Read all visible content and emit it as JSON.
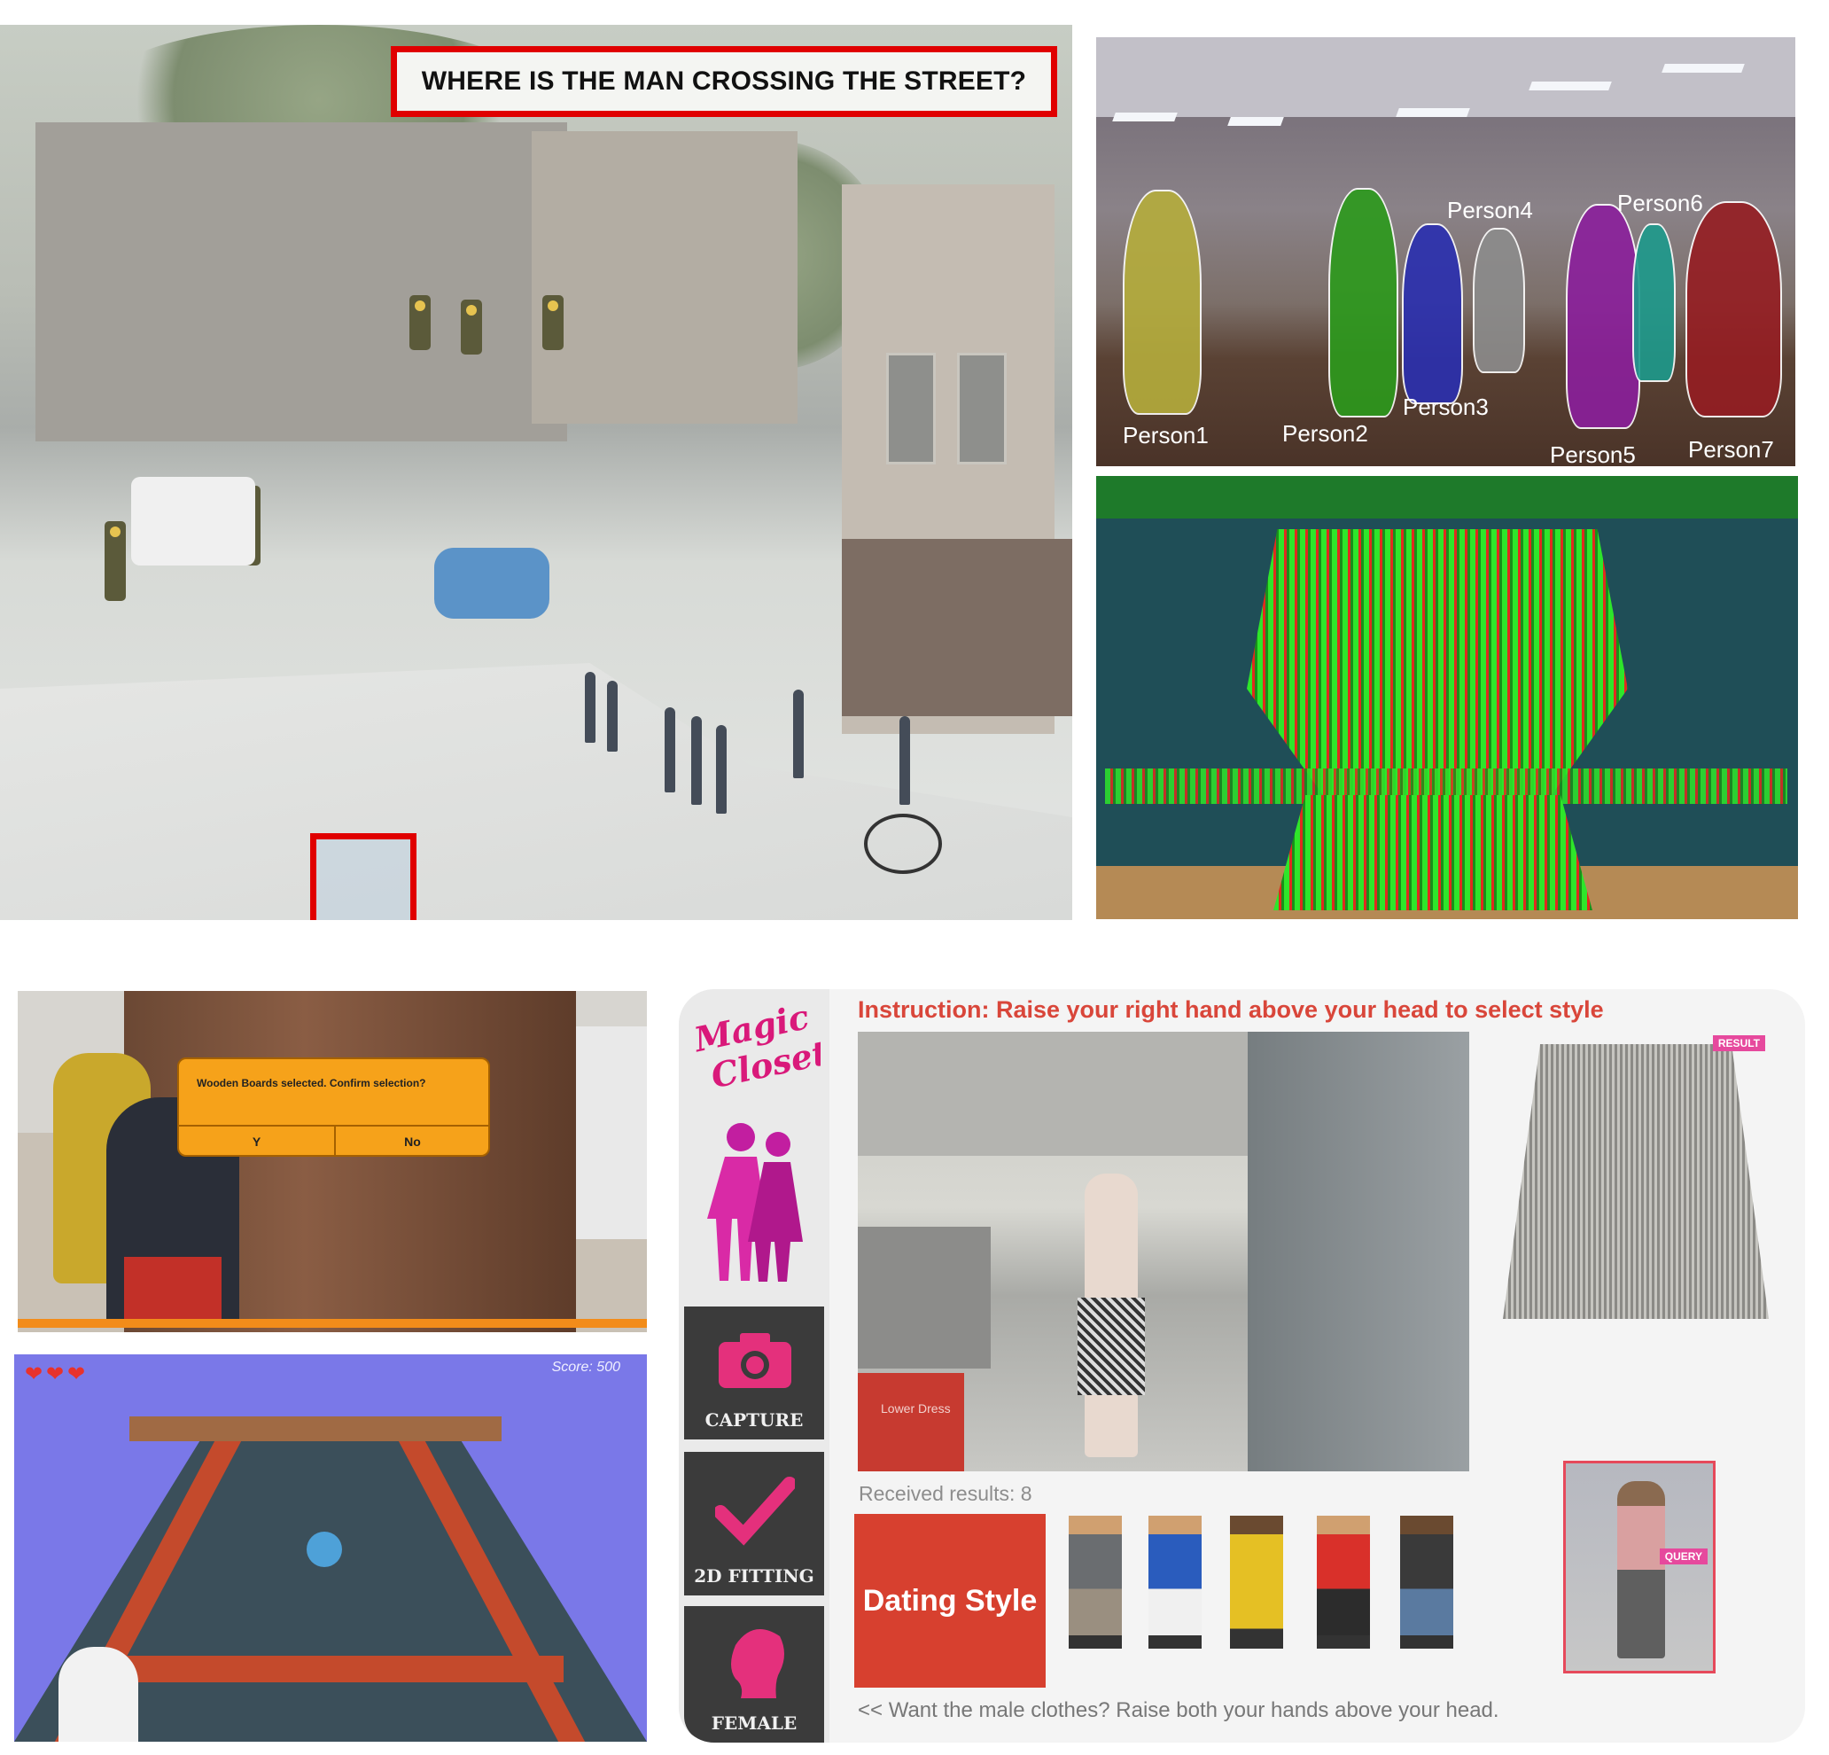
{
  "street": {
    "question": "WHERE IS THE MAN CROSSING THE STREET?"
  },
  "dance": {
    "people": [
      {
        "label": "Person1",
        "color": "#b5ad3c"
      },
      {
        "label": "Person2",
        "color": "#2c9a1c"
      },
      {
        "label": "Person3",
        "color": "#2a2fb0"
      },
      {
        "label": "Person4",
        "color": "#8c8c8c"
      },
      {
        "label": "Person5",
        "color": "#8b1f9c"
      },
      {
        "label": "Person6",
        "color": "#1d9a8c"
      },
      {
        "label": "Person7",
        "color": "#951d22"
      }
    ]
  },
  "construction": {
    "dialog_text": "Wooden Boards selected. Confirm selection?",
    "yes_label": "Y",
    "no_label": "No"
  },
  "rolling": {
    "hearts": [
      "❤",
      "❤",
      "❤"
    ],
    "score_text": "Score: 500"
  },
  "closet": {
    "instruction": "Instruction: Raise your right hand above your head to select style",
    "side_buttons": {
      "capture": "CAPTURE",
      "fitting": "2D FITTING",
      "female": "FEMALE"
    },
    "received": "Received results: 8",
    "style_button": "Dating Style",
    "hint": "<< Want the male clothes? Raise both your hands above your head.",
    "result_tag": "RESULT",
    "query_tag": "QUERY",
    "camera_overlay": "Lower Dress"
  }
}
